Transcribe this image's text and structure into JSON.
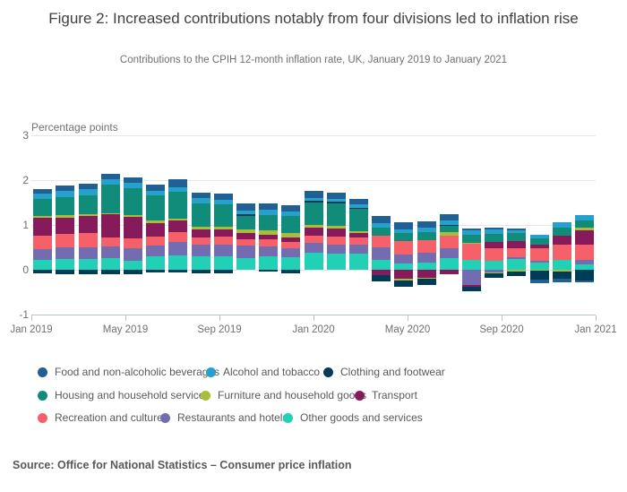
{
  "header": {
    "title": "Figure 2: Increased contributions notably from four divisions led to inflation rise",
    "subtitle": "Contributions to the CPIH 12-month inflation rate, UK, January 2019 to January 2021"
  },
  "source_line": "Source: Office for National Statistics – Consumer price inflation",
  "colors": {
    "grid": "#e6e6e6",
    "axis": "#b4c3d0",
    "title_text": "#414042",
    "muted_text": "#707071",
    "legend_text": "#58595b"
  },
  "chart_data": {
    "type": "bar",
    "stacked": true,
    "title": "Figure 2: Increased contributions notably from four divisions led to inflation rise",
    "subtitle": "Contributions to the CPIH 12-month inflation rate, UK, January 2019 to January 2021",
    "axis_label": "Percentage points",
    "ylabel": "Percentage points",
    "xlabel": "",
    "ylim": [
      -1,
      3
    ],
    "yticks": [
      -1,
      0,
      1,
      2,
      3
    ],
    "grid": true,
    "legend_position": "bottom",
    "xtick_labels": [
      "Jan 2019",
      "May 2019",
      "Sep 2019",
      "Jan 2020",
      "May 2020",
      "Sep 2020",
      "Jan 2021"
    ],
    "categories": [
      "Jan 2019",
      "Feb 2019",
      "Mar 2019",
      "Apr 2019",
      "May 2019",
      "Jun 2019",
      "Jul 2019",
      "Aug 2019",
      "Sep 2019",
      "Oct 2019",
      "Nov 2019",
      "Dec 2019",
      "Jan 2020",
      "Feb 2020",
      "Mar 2020",
      "Apr 2020",
      "May 2020",
      "Jun 2020",
      "Jul 2020",
      "Aug 2020",
      "Sep 2020",
      "Oct 2020",
      "Nov 2020",
      "Dec 2020",
      "Jan 2021"
    ],
    "series": [
      {
        "name": "Food and non-alcoholic beverages",
        "color": "#206095",
        "values": [
          0.1,
          0.12,
          0.12,
          0.11,
          0.11,
          0.15,
          0.17,
          0.13,
          0.13,
          0.15,
          0.15,
          0.15,
          0.16,
          0.13,
          0.13,
          0.15,
          0.15,
          0.15,
          0.15,
          0.04,
          0.04,
          0.04,
          -0.07,
          -0.08,
          -0.05
        ]
      },
      {
        "name": "Alcohol and tobacco",
        "color": "#27a0cc",
        "values": [
          0.11,
          0.13,
          0.13,
          0.12,
          0.12,
          0.1,
          0.11,
          0.11,
          0.1,
          0.09,
          0.11,
          0.1,
          0.07,
          0.07,
          0.07,
          0.11,
          0.09,
          0.09,
          0.09,
          0.1,
          0.1,
          0.07,
          0.09,
          0.13,
          0.12
        ]
      },
      {
        "name": "Clothing and footwear",
        "color": "#003c57",
        "values": [
          -0.08,
          -0.1,
          -0.1,
          -0.1,
          -0.09,
          -0.05,
          -0.05,
          -0.07,
          -0.08,
          0.04,
          -0.03,
          -0.07,
          0.04,
          0.03,
          0.02,
          -0.15,
          -0.15,
          -0.13,
          0.03,
          -0.09,
          -0.1,
          -0.1,
          -0.2,
          -0.17,
          -0.23
        ]
      },
      {
        "name": "Housing and household services",
        "color": "#118c7b",
        "values": [
          0.39,
          0.41,
          0.42,
          0.65,
          0.61,
          0.56,
          0.59,
          0.52,
          0.5,
          0.3,
          0.35,
          0.38,
          0.49,
          0.5,
          0.5,
          0.18,
          0.18,
          0.19,
          0.13,
          0.17,
          0.18,
          0.18,
          0.13,
          0.17,
          0.16
        ]
      },
      {
        "name": "Furniture and household goods",
        "color": "#a8bd3a",
        "values": [
          0.04,
          0.05,
          0.05,
          0.02,
          0.04,
          0.05,
          0.05,
          0.07,
          0.07,
          0.08,
          0.09,
          0.09,
          0.07,
          0.07,
          0.05,
          0.0,
          -0.03,
          -0.02,
          0.09,
          0.03,
          -0.03,
          -0.03,
          -0.02,
          -0.03,
          0.07
        ]
      },
      {
        "name": "Transport",
        "color": "#871a5b",
        "values": [
          0.4,
          0.37,
          0.38,
          0.51,
          0.47,
          0.31,
          0.25,
          0.17,
          0.15,
          0.13,
          0.11,
          0.1,
          0.17,
          0.18,
          0.1,
          -0.11,
          -0.2,
          -0.18,
          -0.09,
          -0.05,
          0.14,
          0.15,
          0.08,
          0.2,
          0.31
        ]
      },
      {
        "name": "Recreation and culture",
        "color": "#f66068",
        "values": [
          0.29,
          0.3,
          0.32,
          0.2,
          0.23,
          0.2,
          0.23,
          0.17,
          0.19,
          0.15,
          0.15,
          0.15,
          0.16,
          0.17,
          0.16,
          0.25,
          0.29,
          0.28,
          0.27,
          0.36,
          0.28,
          0.2,
          0.28,
          0.35,
          0.35
        ]
      },
      {
        "name": "Restaurants and hotels",
        "color": "#746cb1",
        "values": [
          0.25,
          0.25,
          0.26,
          0.27,
          0.27,
          0.23,
          0.3,
          0.25,
          0.25,
          0.27,
          0.23,
          0.19,
          0.22,
          0.2,
          0.2,
          0.29,
          0.2,
          0.21,
          0.22,
          -0.33,
          -0.05,
          0.05,
          0.04,
          0.0,
          0.1
        ]
      },
      {
        "name": "Other goods and services",
        "color": "#22d0b6",
        "values": [
          0.22,
          0.25,
          0.24,
          0.26,
          0.21,
          0.31,
          0.32,
          0.31,
          0.31,
          0.27,
          0.3,
          0.29,
          0.39,
          0.37,
          0.36,
          0.22,
          0.15,
          0.17,
          0.27,
          0.22,
          0.2,
          0.24,
          0.17,
          0.22,
          0.12
        ]
      }
    ]
  }
}
